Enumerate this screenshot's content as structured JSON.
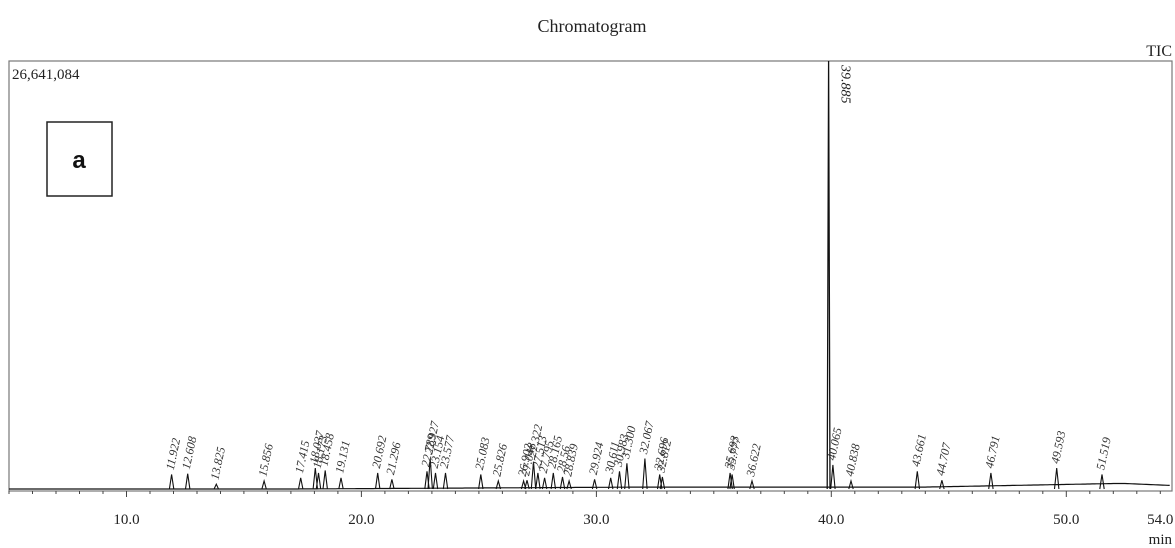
{
  "chart_data": {
    "type": "line",
    "title": "Chromatogram",
    "trace_label": "TIC",
    "max_intensity_label": "26,641,084",
    "panel_label": "a",
    "xlabel": "min",
    "xlim": [
      5.0,
      54.5
    ],
    "ylim": [
      0,
      26641084
    ],
    "x_ticks": [
      10.0,
      20.0,
      30.0,
      40.0,
      50.0,
      54.0
    ],
    "x_tick_labels": [
      "10.0",
      "20.0",
      "30.0",
      "40.0",
      "50.0",
      "54.0"
    ],
    "peaks": [
      {
        "rt": 11.922,
        "label": "11.922",
        "intensity": 900000
      },
      {
        "rt": 12.608,
        "label": "12.608",
        "intensity": 950000
      },
      {
        "rt": 13.825,
        "label": "13.825",
        "intensity": 300000
      },
      {
        "rt": 15.856,
        "label": "15.856",
        "intensity": 500000
      },
      {
        "rt": 17.415,
        "label": "17.415",
        "intensity": 700000
      },
      {
        "rt": 18.037,
        "label": "18.037",
        "intensity": 1300000
      },
      {
        "rt": 18.173,
        "label": "18.173",
        "intensity": 1000000
      },
      {
        "rt": 18.458,
        "label": "18.458",
        "intensity": 1150000
      },
      {
        "rt": 19.131,
        "label": "19.131",
        "intensity": 700000
      },
      {
        "rt": 20.692,
        "label": "20.692",
        "intensity": 1000000
      },
      {
        "rt": 21.296,
        "label": "21.296",
        "intensity": 600000
      },
      {
        "rt": 22.789,
        "label": "22.789",
        "intensity": 1100000
      },
      {
        "rt": 22.927,
        "label": "22.927",
        "intensity": 1900000
      },
      {
        "rt": 23.154,
        "label": "23.154",
        "intensity": 1000000
      },
      {
        "rt": 23.577,
        "label": "23.577",
        "intensity": 1000000
      },
      {
        "rt": 25.083,
        "label": "25.083",
        "intensity": 900000
      },
      {
        "rt": 25.826,
        "label": "25.826",
        "intensity": 500000
      },
      {
        "rt": 26.902,
        "label": "26.902",
        "intensity": 500000
      },
      {
        "rt": 27.048,
        "label": "27.048",
        "intensity": 550000
      },
      {
        "rt": 27.322,
        "label": "27.322",
        "intensity": 1700000
      },
      {
        "rt": 27.513,
        "label": "27.513",
        "intensity": 1000000
      },
      {
        "rt": 27.795,
        "label": "27.795",
        "intensity": 700000
      },
      {
        "rt": 28.165,
        "label": "28.165",
        "intensity": 1000000
      },
      {
        "rt": 28.56,
        "label": "28.56",
        "intensity": 750000
      },
      {
        "rt": 28.839,
        "label": "28.839",
        "intensity": 500000
      },
      {
        "rt": 29.924,
        "label": "29.924",
        "intensity": 600000
      },
      {
        "rt": 30.611,
        "label": "30.611",
        "intensity": 700000
      },
      {
        "rt": 30.983,
        "label": "30.983",
        "intensity": 1100000
      },
      {
        "rt": 31.3,
        "label": "31.300",
        "intensity": 1600000
      },
      {
        "rt": 32.067,
        "label": "32.067",
        "intensity": 1900000
      },
      {
        "rt": 32.696,
        "label": "32.696",
        "intensity": 900000
      },
      {
        "rt": 32.812,
        "label": "32.812",
        "intensity": 750000
      },
      {
        "rt": 35.693,
        "label": "35.693",
        "intensity": 1000000
      },
      {
        "rt": 35.777,
        "label": "35.777",
        "intensity": 900000
      },
      {
        "rt": 36.622,
        "label": "36.622",
        "intensity": 500000
      },
      {
        "rt": 39.885,
        "label": "39.885",
        "intensity": 26641084
      },
      {
        "rt": 40.065,
        "label": "40.065",
        "intensity": 1500000
      },
      {
        "rt": 40.838,
        "label": "40.838",
        "intensity": 500000
      },
      {
        "rt": 43.661,
        "label": "43.661",
        "intensity": 1100000
      },
      {
        "rt": 44.707,
        "label": "44.707",
        "intensity": 550000
      },
      {
        "rt": 46.791,
        "label": "46.791",
        "intensity": 1000000
      },
      {
        "rt": 49.593,
        "label": "49.593",
        "intensity": 1300000
      },
      {
        "rt": 51.519,
        "label": "51.519",
        "intensity": 900000
      }
    ]
  }
}
